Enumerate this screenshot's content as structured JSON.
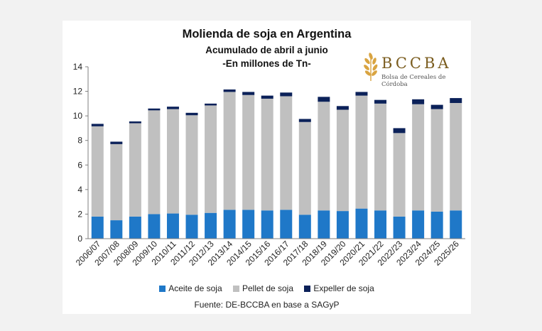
{
  "chart_data": {
    "type": "bar",
    "stacked": true,
    "title": "Molienda de soja en Argentina",
    "subtitle": "Acumulado de abril a junio",
    "unit_note": "-En millones de Tn-",
    "ylim": [
      0,
      14
    ],
    "yticks": [
      0,
      2,
      4,
      6,
      8,
      10,
      12,
      14
    ],
    "categories": [
      "2006/07",
      "2007/08",
      "2008/09",
      "2009/10",
      "2010/11",
      "2011/12",
      "2012/13",
      "2013/14",
      "2014/15",
      "2015/16",
      "2016/17",
      "2017/18",
      "2018/19",
      "2019/20",
      "2020/21",
      "2021/22",
      "2022/23",
      "2023/24",
      "2024/25",
      "2025/26"
    ],
    "series": [
      {
        "name": "Aceite de soja",
        "color": "#1f78c8",
        "values": [
          1.8,
          1.5,
          1.8,
          2.0,
          2.05,
          1.95,
          2.1,
          2.35,
          2.35,
          2.3,
          2.35,
          1.95,
          2.3,
          2.25,
          2.45,
          2.3,
          1.8,
          2.3,
          2.2,
          2.3
        ]
      },
      {
        "name": "Pellet de soja",
        "color": "#c0c0c0",
        "values": [
          7.35,
          6.2,
          7.6,
          8.45,
          8.5,
          8.1,
          8.75,
          9.6,
          9.35,
          9.1,
          9.25,
          7.55,
          8.85,
          8.25,
          9.2,
          8.7,
          6.8,
          8.65,
          8.35,
          8.75
        ]
      },
      {
        "name": "Expeller de soja",
        "color": "#0b2159",
        "values": [
          0.2,
          0.2,
          0.15,
          0.15,
          0.2,
          0.2,
          0.15,
          0.2,
          0.25,
          0.25,
          0.3,
          0.25,
          0.4,
          0.3,
          0.3,
          0.3,
          0.4,
          0.4,
          0.35,
          0.4
        ]
      }
    ],
    "legend_position": "bottom",
    "grid": false,
    "source": "Fuente: DE-BCCBA en base a SAGyP"
  },
  "logo": {
    "name": "wheat-logo-icon",
    "text": "BCCBA",
    "subtext": "Bolsa de Cereales de Córdoba"
  }
}
